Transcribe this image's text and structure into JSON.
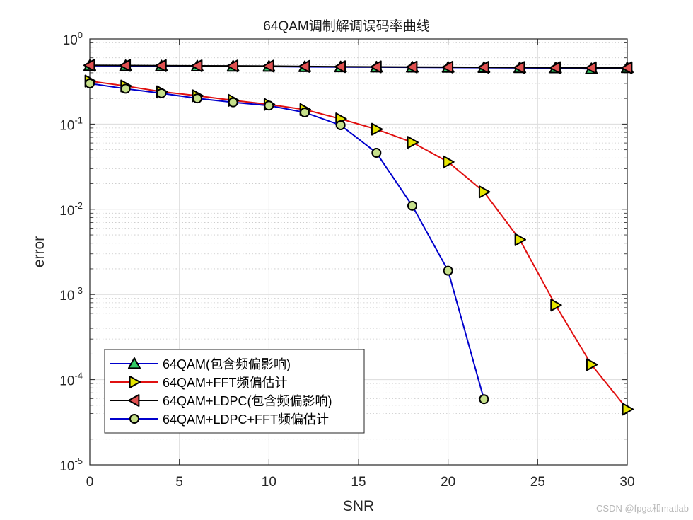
{
  "figure": {
    "title": "64QAM调制解调误码率曲线",
    "xlabel": "SNR",
    "ylabel": "error",
    "watermark": "CSDN @fpga和matlab",
    "legend": [
      {
        "label": "64QAM(包含频偏影响)",
        "line_color": "#0000cc",
        "marker": "triangle-up",
        "marker_color": "#33cc66"
      },
      {
        "label": "64QAM+FFT频偏估计",
        "line_color": "#e01010",
        "marker": "triangle-right",
        "marker_color": "#e6e600"
      },
      {
        "label": "64QAM+LDPC(包含频偏影响)",
        "line_color": "#000000",
        "marker": "triangle-left",
        "marker_color": "#e05050"
      },
      {
        "label": "64QAM+LDPC+FFT频偏估计",
        "line_color": "#0000cc",
        "marker": "circle",
        "marker_color": "#c6e08a"
      }
    ]
  },
  "chart_data": {
    "type": "line",
    "title": "64QAM调制解调误码率曲线",
    "xlabel": "SNR",
    "ylabel": "error",
    "yscale": "log",
    "xlim": [
      0,
      30
    ],
    "ylim": [
      1e-05,
      1
    ],
    "xticks": [
      0,
      5,
      10,
      15,
      20,
      25,
      30
    ],
    "yticks": [
      "10^0",
      "10^-1",
      "10^-2",
      "10^-3",
      "10^-4",
      "10^-5"
    ],
    "grid": true,
    "legend_position": "lower left",
    "x": [
      0,
      2,
      4,
      6,
      8,
      10,
      12,
      14,
      16,
      18,
      20,
      22,
      24,
      26,
      28,
      30
    ],
    "series": [
      {
        "name": "64QAM(包含频偏影响)",
        "color": "#0000cc",
        "marker": "^",
        "marker_face": "#33cc66",
        "x": [
          0,
          2,
          4,
          6,
          8,
          10,
          12,
          14,
          16,
          18,
          20,
          22,
          24,
          26,
          28,
          30
        ],
        "values": [
          0.485,
          0.483,
          0.48,
          0.478,
          0.476,
          0.474,
          0.47,
          0.468,
          0.466,
          0.464,
          0.462,
          0.46,
          0.458,
          0.456,
          0.445,
          0.458
        ]
      },
      {
        "name": "64QAM+FFT频偏估计",
        "color": "#e01010",
        "marker": ">",
        "marker_face": "#e6e600",
        "x": [
          0,
          2,
          4,
          6,
          8,
          10,
          12,
          14,
          16,
          18,
          20,
          22,
          24,
          26,
          28,
          30
        ],
        "values": [
          0.32,
          0.28,
          0.24,
          0.215,
          0.19,
          0.17,
          0.148,
          0.115,
          0.087,
          0.061,
          0.036,
          0.016,
          0.0044,
          0.00075,
          0.00015,
          4.5e-05
        ]
      },
      {
        "name": "64QAM+LDPC(包含频偏影响)",
        "color": "#000000",
        "marker": "<",
        "marker_face": "#e05050",
        "x": [
          0,
          2,
          4,
          6,
          8,
          10,
          12,
          14,
          16,
          18,
          20,
          22,
          24,
          26,
          28,
          30
        ],
        "values": [
          0.49,
          0.488,
          0.486,
          0.484,
          0.482,
          0.48,
          0.476,
          0.472,
          0.47,
          0.468,
          0.466,
          0.464,
          0.462,
          0.46,
          0.458,
          0.458
        ]
      },
      {
        "name": "64QAM+LDPC+FFT频偏估计",
        "color": "#0000cc",
        "marker": "o",
        "marker_face": "#c6e08a",
        "x": [
          0,
          2,
          4,
          6,
          8,
          10,
          12,
          14,
          16,
          18,
          20,
          22
        ],
        "values": [
          0.3,
          0.26,
          0.23,
          0.2,
          0.18,
          0.165,
          0.137,
          0.097,
          0.046,
          0.011,
          0.0019,
          5.9e-05
        ]
      }
    ]
  }
}
